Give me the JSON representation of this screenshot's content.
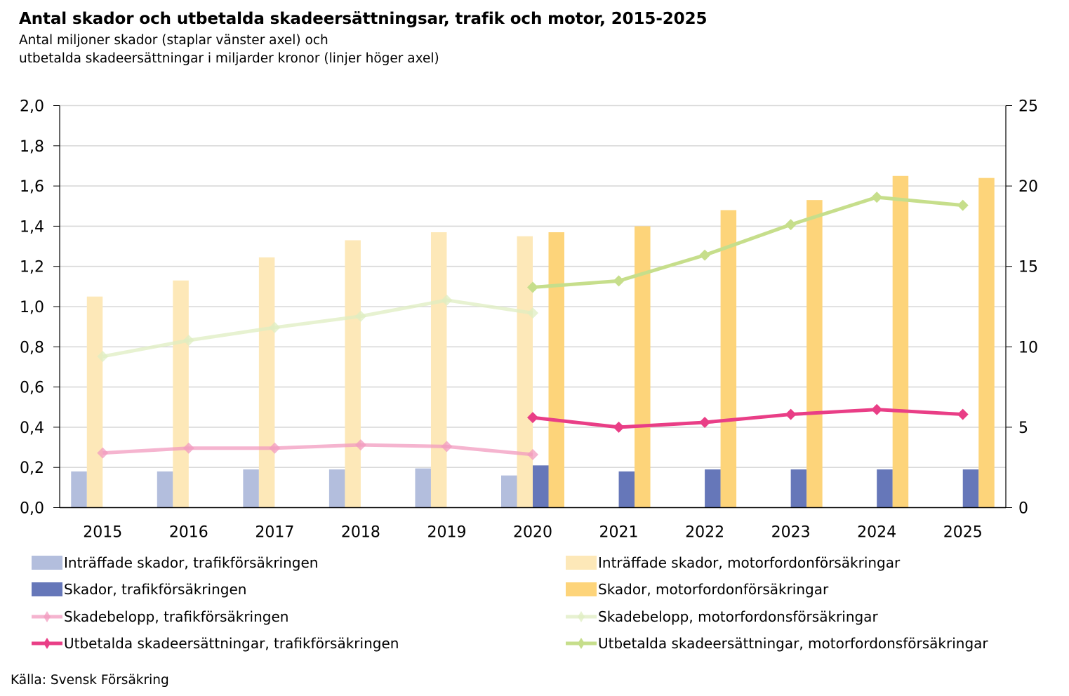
{
  "title": "Antal skador och utbetalda skadeersättningsar, trafik och motor, 2015-2025",
  "subtitle_line1": "Antal miljoner skador (staplar vänster axel) och",
  "subtitle_line2": "utbetalda skadeersättningar i miljarder kronor (linjer höger axel)",
  "source": "Källa: Svensk Försäkring",
  "colors": {
    "light_blue": "#b3bedd",
    "dark_blue": "#6677b9",
    "light_yellow": "#fde8b8",
    "dark_yellow": "#fdd47a",
    "light_pink": "#f29bbf",
    "dark_pink": "#e93e86",
    "light_green": "#dfedc2",
    "dark_green": "#c6de8b",
    "grid": "#d9d9d9",
    "axis": "#000000"
  },
  "legend": [
    {
      "label": "Inträffade skador, trafikförsäkringen",
      "key": "light_blue",
      "kind": "bar"
    },
    {
      "label": "Inträffade skador, motorfordonförsäkringar",
      "key": "light_yellow",
      "kind": "bar"
    },
    {
      "label": "Skador, trafikförsäkringen",
      "key": "dark_blue",
      "kind": "bar"
    },
    {
      "label": "Skador, motorfordonförsäkringar",
      "key": "dark_yellow",
      "kind": "bar"
    },
    {
      "label": "Skadebelopp, trafikförsäkringen",
      "key": "light_pink",
      "kind": "line"
    },
    {
      "label": "Skadebelopp, motorfordonsförsäkringar",
      "key": "light_green",
      "kind": "line"
    },
    {
      "label": "Utbetalda skadeersättningar, trafikförsäkringen",
      "key": "dark_pink",
      "kind": "line"
    },
    {
      "label": "Utbetalda skadeersättningar, motorfordonsförsäkringar",
      "key": "dark_green",
      "kind": "line"
    }
  ],
  "chart_data": {
    "type": "bar",
    "title": "Antal skador och utbetalda skadeersättningsar, trafik och motor, 2015-2025",
    "subtitle": "Antal miljoner skador (staplar vänster axel) och utbetalda skadeersättningar i miljarder kronor (linjer höger axel)",
    "categories": [
      "2015",
      "2016",
      "2017",
      "2018",
      "2019",
      "2020",
      "2021",
      "2022",
      "2023",
      "2024",
      "2025"
    ],
    "y_left": {
      "label": "Antal miljoner skador",
      "range": [
        0,
        2.0
      ],
      "ticks": [
        "0,0",
        "0,2",
        "0,4",
        "0,6",
        "0,8",
        "1,0",
        "1,2",
        "1,4",
        "1,6",
        "1,8",
        "2,0"
      ],
      "tick_values": [
        0,
        0.2,
        0.4,
        0.6,
        0.8,
        1.0,
        1.2,
        1.4,
        1.6,
        1.8,
        2.0
      ]
    },
    "y_right": {
      "label": "Miljarder kronor",
      "range": [
        0,
        25
      ],
      "ticks": [
        "0",
        "5",
        "10",
        "15",
        "20",
        "25"
      ],
      "tick_values": [
        0,
        5,
        10,
        15,
        20,
        25
      ]
    },
    "grid": true,
    "legend_position": "bottom",
    "bar_series": [
      {
        "name": "Inträffade skador, trafikförsäkringen",
        "color_key": "light_blue",
        "slot": 0,
        "axis": "left",
        "values": [
          0.18,
          0.18,
          0.19,
          0.19,
          0.195,
          0.16,
          null,
          null,
          null,
          null,
          null
        ]
      },
      {
        "name": "Inträffade skador, motorfordonförsäkringar",
        "color_key": "light_yellow",
        "slot": 1,
        "axis": "left",
        "values": [
          1.05,
          1.13,
          1.245,
          1.33,
          1.37,
          1.35,
          null,
          null,
          null,
          null,
          null
        ]
      },
      {
        "name": "Skador, trafikförsäkringen",
        "color_key": "dark_blue",
        "slot": 2,
        "axis": "left",
        "values": [
          null,
          null,
          null,
          null,
          null,
          0.21,
          0.18,
          0.19,
          0.19,
          0.19,
          0.19
        ]
      },
      {
        "name": "Skador, motorfordonförsäkringar",
        "color_key": "dark_yellow",
        "slot": 3,
        "axis": "left",
        "values": [
          null,
          null,
          null,
          null,
          null,
          1.37,
          1.4,
          1.48,
          1.53,
          1.65,
          1.64
        ]
      }
    ],
    "line_series": [
      {
        "name": "Skadebelopp, trafikförsäkringen",
        "color_key": "light_pink",
        "axis": "right",
        "faded": true,
        "values": [
          3.4,
          3.7,
          3.7,
          3.9,
          3.8,
          3.3,
          null,
          null,
          null,
          null,
          null
        ]
      },
      {
        "name": "Skadebelopp, motorfordonsförsäkringar",
        "color_key": "light_green",
        "axis": "right",
        "faded": true,
        "values": [
          9.4,
          10.4,
          11.2,
          11.9,
          12.9,
          12.1,
          null,
          null,
          null,
          null,
          null
        ]
      },
      {
        "name": "Utbetalda skadeersättningar, trafikförsäkringen",
        "color_key": "dark_pink",
        "axis": "right",
        "faded": false,
        "values": [
          null,
          null,
          null,
          null,
          null,
          5.6,
          5.0,
          5.3,
          5.8,
          6.1,
          5.8
        ]
      },
      {
        "name": "Utbetalda skadeersättningar, motorfordonsförsäkringar",
        "color_key": "dark_green",
        "axis": "right",
        "faded": false,
        "values": [
          null,
          null,
          null,
          null,
          null,
          13.7,
          14.1,
          15.7,
          17.6,
          19.3,
          18.8
        ]
      }
    ]
  }
}
